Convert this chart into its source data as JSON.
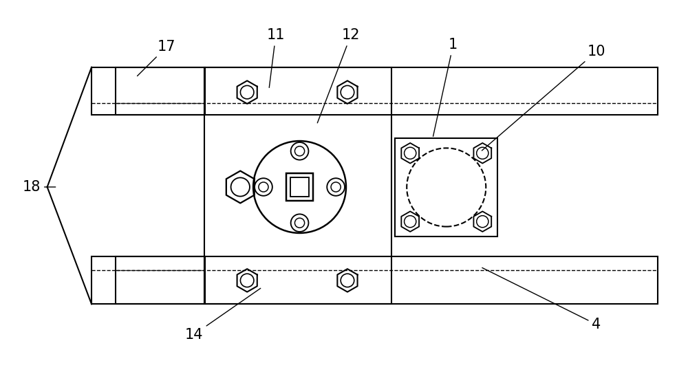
{
  "bg_color": "#ffffff",
  "line_color": "#000000",
  "fig_width": 10.0,
  "fig_height": 5.44,
  "label_fontsize": 15
}
